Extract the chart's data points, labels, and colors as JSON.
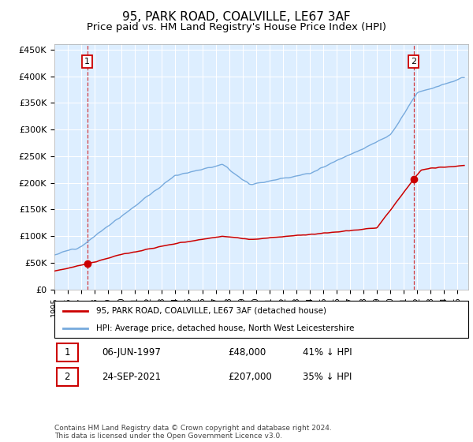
{
  "title": "95, PARK ROAD, COALVILLE, LE67 3AF",
  "subtitle": "Price paid vs. HM Land Registry's House Price Index (HPI)",
  "ylabel_ticks": [
    "£0",
    "£50K",
    "£100K",
    "£150K",
    "£200K",
    "£250K",
    "£300K",
    "£350K",
    "£400K",
    "£450K"
  ],
  "ytick_values": [
    0,
    50000,
    100000,
    150000,
    200000,
    250000,
    300000,
    350000,
    400000,
    450000
  ],
  "ylim": [
    0,
    460000
  ],
  "xlim_start": 1995.0,
  "xlim_end": 2025.8,
  "point1_x": 1997.44,
  "point1_y": 48000,
  "point1_label": "1",
  "point1_date": "06-JUN-1997",
  "point1_price": "£48,000",
  "point1_hpi": "41% ↓ HPI",
  "point2_x": 2021.73,
  "point2_y": 207000,
  "point2_label": "2",
  "point2_date": "24-SEP-2021",
  "point2_price": "£207,000",
  "point2_hpi": "35% ↓ HPI",
  "line1_color": "#cc0000",
  "line2_color": "#77aadd",
  "point_color": "#cc0000",
  "plot_bg_color": "#ddeeff",
  "grid_color": "#ffffff",
  "legend_label1": "95, PARK ROAD, COALVILLE, LE67 3AF (detached house)",
  "legend_label2": "HPI: Average price, detached house, North West Leicestershire",
  "footnote": "Contains HM Land Registry data © Crown copyright and database right 2024.\nThis data is licensed under the Open Government Licence v3.0.",
  "title_fontsize": 11,
  "subtitle_fontsize": 9.5,
  "axis_fontsize": 8
}
